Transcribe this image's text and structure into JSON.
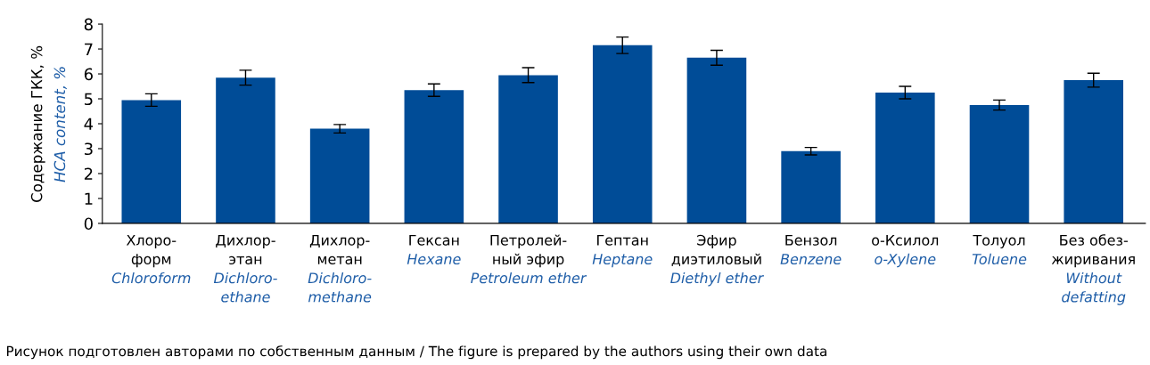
{
  "chart_data": {
    "type": "bar",
    "ylabel": "Содержание ГКК, %\nHCA content, %",
    "categories": [
      "Хлоро-\nформ\nChloroform",
      "Дихлор-\nэтан\nDichloro-\nethane",
      "Дихлор-\nметан\nDichloro-\nmethane",
      "Гексан\nHexane",
      "Петролей-\nный эфир\nPetroleum ether",
      "Гептан\nHeptane",
      "Эфир\nдиэтиловый\nDiethyl ether",
      "Бензол\nBenzene",
      "о-Ксилол\no-Xylene",
      "Толуол\nToluene",
      "Без обез-\nжиривания\nWithout\ndefatting"
    ],
    "values": [
      4.95,
      5.85,
      3.8,
      5.35,
      5.95,
      7.15,
      6.65,
      2.9,
      5.25,
      4.75,
      5.75
    ],
    "errors": [
      0.25,
      0.3,
      0.17,
      0.25,
      0.3,
      0.33,
      0.3,
      0.15,
      0.25,
      0.2,
      0.28
    ],
    "color": "#004c97",
    "ylim": [
      0,
      8
    ],
    "yticks": [
      0,
      1,
      2,
      3,
      4,
      5,
      6,
      7,
      8
    ],
    "grid": false,
    "legend": false,
    "annotations": [
      "Рисунок подготовлен авторами по собственным данным / The figure is prepared by the authors using their own data"
    ]
  }
}
